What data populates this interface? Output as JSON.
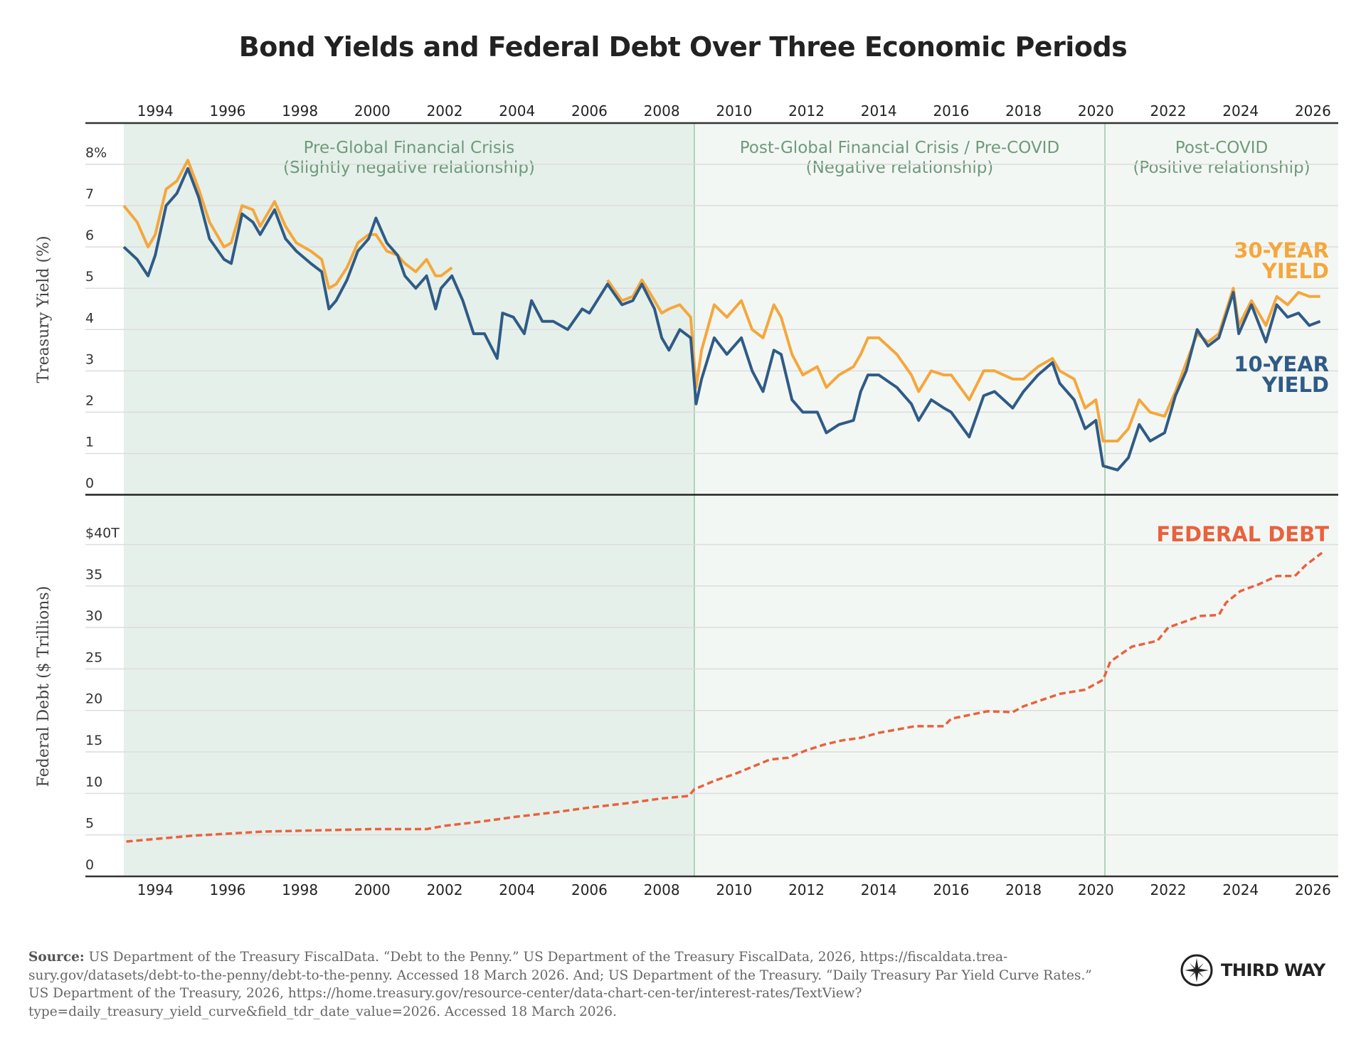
{
  "title": "Bond Yields and Federal Debt Over Three Economic Periods",
  "colors": {
    "yield_30": "#f5a73c",
    "yield_10": "#2f5b86",
    "debt": "#e8623d",
    "period_label": "#6e9a7b",
    "period_1_bg": "#e6f0ea",
    "period_2_bg": "#f3f7f4",
    "period_3_bg": "#f3f7f4",
    "gridline": "#dcdcdc",
    "divider": "#9cc6a6"
  },
  "chart_data": [
    {
      "type": "line",
      "panel": "top",
      "ylabel": "Treasury Yield (%)",
      "ylim": [
        0,
        9
      ],
      "xlim": [
        1993.13,
        2026.7
      ],
      "x_ticks": [
        1994,
        1996,
        1998,
        2000,
        2002,
        2004,
        2006,
        2008,
        2010,
        2012,
        2014,
        2016,
        2018,
        2020,
        2022,
        2024,
        2026
      ],
      "x_tick_labels": [
        "1994",
        "1996",
        "1998",
        "2000",
        "2002",
        "2004",
        "2006",
        "2008",
        "2010",
        "2012",
        "2014",
        "2016",
        "2018",
        "2020",
        "2022",
        "2024",
        "2026"
      ],
      "y_ticks": [
        0,
        1,
        2,
        3,
        4,
        5,
        6,
        7,
        8
      ],
      "y_tick_labels": [
        "0",
        "1",
        "2",
        "3",
        "4",
        "5",
        "6",
        "7",
        "8%"
      ],
      "grid": true,
      "periods": [
        {
          "label_1": "Pre-Global Financial Crisis",
          "label_2": "(Slightly negative relationship)",
          "start": 1993.13,
          "end": 2008.9
        },
        {
          "label_1": "Post-Global Financial Crisis / Pre-COVID",
          "label_2": "(Negative relationship)",
          "start": 2008.9,
          "end": 2020.25
        },
        {
          "label_1": "Post-COVID",
          "label_2": "(Positive relationship)",
          "start": 2020.25,
          "end": 2026.7
        }
      ],
      "x": [
        1993.13,
        1993.5,
        1993.8,
        1994.0,
        1994.3,
        1994.6,
        1994.9,
        1995.2,
        1995.5,
        1995.9,
        1996.1,
        1996.4,
        1996.7,
        1996.9,
        1997.3,
        1997.6,
        1997.9,
        1998.3,
        1998.6,
        1998.8,
        1999.0,
        1999.3,
        1999.6,
        1999.9,
        2000.1,
        2000.4,
        2000.7,
        2000.9,
        2001.2,
        2001.5,
        2001.75,
        2001.9,
        2002.2,
        2002.5,
        2002.8,
        2003.1,
        2003.45,
        2003.6,
        2003.9,
        2004.2,
        2004.4,
        2004.7,
        2005.0,
        2005.4,
        2005.8,
        2006.0,
        2006.5,
        2006.9,
        2007.2,
        2007.45,
        2007.8,
        2008.0,
        2008.2,
        2008.5,
        2008.8,
        2008.95,
        2009.1,
        2009.45,
        2009.8,
        2010.2,
        2010.5,
        2010.8,
        2011.1,
        2011.3,
        2011.6,
        2011.9,
        2012.3,
        2012.55,
        2012.9,
        2013.3,
        2013.5,
        2013.7,
        2014.0,
        2014.5,
        2014.9,
        2015.1,
        2015.45,
        2015.8,
        2016.0,
        2016.5,
        2016.9,
        2017.2,
        2017.7,
        2018.0,
        2018.4,
        2018.8,
        2019.0,
        2019.4,
        2019.7,
        2020.0,
        2020.2,
        2020.6,
        2020.9,
        2021.2,
        2021.5,
        2021.9,
        2022.2,
        2022.5,
        2022.8,
        2023.1,
        2023.4,
        2023.8,
        2023.95,
        2024.3,
        2024.7,
        2025.0,
        2025.3,
        2025.6,
        2025.9,
        2026.2
      ],
      "series": [
        {
          "name": "30-YEAR YIELD",
          "label_1": "30-YEAR",
          "label_2": "YIELD",
          "values": [
            7.0,
            6.6,
            6.0,
            6.3,
            7.4,
            7.6,
            8.1,
            7.4,
            6.6,
            6.0,
            6.1,
            7.0,
            6.9,
            6.5,
            7.1,
            6.5,
            6.1,
            5.9,
            5.7,
            5.0,
            5.1,
            5.5,
            6.1,
            6.3,
            6.3,
            5.9,
            5.8,
            5.6,
            5.4,
            5.7,
            5.3,
            5.3,
            5.5,
            null,
            null,
            null,
            null,
            null,
            null,
            null,
            null,
            null,
            null,
            null,
            null,
            null,
            5.2,
            4.7,
            4.8,
            5.2,
            4.7,
            4.4,
            4.5,
            4.6,
            4.3,
            2.6,
            3.5,
            4.6,
            4.3,
            4.7,
            4.0,
            3.8,
            4.6,
            4.3,
            3.4,
            2.9,
            3.1,
            2.6,
            2.9,
            3.1,
            3.4,
            3.8,
            3.8,
            3.4,
            2.9,
            2.5,
            3.0,
            2.9,
            2.9,
            2.3,
            3.0,
            3.0,
            2.8,
            2.8,
            3.1,
            3.3,
            3.0,
            2.8,
            2.1,
            2.3,
            1.3,
            1.3,
            1.6,
            2.3,
            2.0,
            1.9,
            2.5,
            3.2,
            3.9,
            3.7,
            3.9,
            5.0,
            4.1,
            4.7,
            4.1,
            4.8,
            4.6,
            4.9,
            4.8,
            4.8
          ]
        },
        {
          "name": "10-YEAR YIELD",
          "label_1": "10-YEAR",
          "label_2": "YIELD",
          "values": [
            6.0,
            5.7,
            5.3,
            5.8,
            7.0,
            7.3,
            7.9,
            7.2,
            6.2,
            5.7,
            5.6,
            6.8,
            6.6,
            6.3,
            6.9,
            6.2,
            5.9,
            5.6,
            5.4,
            4.5,
            4.7,
            5.2,
            5.9,
            6.2,
            6.7,
            6.1,
            5.8,
            5.3,
            5.0,
            5.3,
            4.5,
            5.0,
            5.3,
            4.7,
            3.9,
            3.9,
            3.3,
            4.4,
            4.3,
            3.9,
            4.7,
            4.2,
            4.2,
            4.0,
            4.5,
            4.4,
            5.1,
            4.6,
            4.7,
            5.1,
            4.5,
            3.8,
            3.5,
            4.0,
            3.8,
            2.2,
            2.8,
            3.8,
            3.4,
            3.8,
            3.0,
            2.5,
            3.5,
            3.4,
            2.3,
            2.0,
            2.0,
            1.5,
            1.7,
            1.8,
            2.5,
            2.9,
            2.9,
            2.6,
            2.2,
            1.8,
            2.3,
            2.1,
            2.0,
            1.4,
            2.4,
            2.5,
            2.1,
            2.5,
            2.9,
            3.2,
            2.7,
            2.3,
            1.6,
            1.8,
            0.7,
            0.6,
            0.9,
            1.7,
            1.3,
            1.5,
            2.4,
            3.0,
            4.0,
            3.6,
            3.8,
            4.9,
            3.9,
            4.6,
            3.7,
            4.6,
            4.3,
            4.4,
            4.1,
            4.2
          ]
        }
      ]
    },
    {
      "type": "line",
      "panel": "bottom",
      "ylabel": "Federal Debt ($ Trillions)",
      "ylim": [
        0,
        46
      ],
      "xlim": [
        1993.13,
        2026.7
      ],
      "y_ticks": [
        0,
        5,
        10,
        15,
        20,
        25,
        30,
        35,
        40
      ],
      "y_tick_labels": [
        "0",
        "5",
        "10",
        "15",
        "20",
        "25",
        "30",
        "35",
        "$40T"
      ],
      "grid": true,
      "line_style": "dashed",
      "series": [
        {
          "name": "FEDERAL DEBT",
          "x": [
            1993.2,
            1995,
            1997,
            1999,
            2000,
            2001.5,
            2002,
            2003,
            2004,
            2005,
            2006,
            2007,
            2008,
            2008.75,
            2008.9,
            2009.5,
            2010,
            2010.5,
            2011,
            2011.5,
            2012,
            2012.5,
            2013,
            2013.5,
            2014,
            2015,
            2015.8,
            2016,
            2017,
            2017.7,
            2018,
            2019,
            2019.7,
            2020.2,
            2020.4,
            2021,
            2021.7,
            2022,
            2022.9,
            2023.4,
            2023.6,
            2024,
            2024.5,
            2025,
            2025.5,
            2025.8,
            2026.25
          ],
          "values": [
            4.2,
            4.9,
            5.4,
            5.6,
            5.7,
            5.7,
            6.1,
            6.6,
            7.2,
            7.7,
            8.3,
            8.8,
            9.4,
            9.7,
            10.5,
            11.6,
            12.3,
            13.2,
            14.1,
            14.3,
            15.2,
            15.9,
            16.4,
            16.7,
            17.3,
            18.1,
            18.1,
            19.0,
            19.9,
            19.8,
            20.5,
            22.0,
            22.5,
            23.7,
            25.9,
            27.7,
            28.4,
            30.0,
            31.4,
            31.5,
            33.0,
            34.4,
            35.2,
            36.2,
            36.2,
            37.5,
            39.0
          ]
        }
      ]
    }
  ],
  "source": {
    "label": "Source:",
    "text": "US Department of the Treasury FiscalData. “Debt to the Penny.” US Department of the Treasury FiscalData, 2026, https://fiscaldata.trea-sury.gov/datasets/debt-to-the-penny/debt-to-the-penny. Accessed 18 March 2026. And; US Department of the Treasury. “Daily Treasury Par Yield Curve Rates.” US Department of the Treasury, 2026, https://home.treasury.gov/resource-center/data-chart-cen-ter/interest-rates/TextView?type=daily_treasury_yield_curve&field_tdr_date_value=2026. Accessed 18 March 2026."
  },
  "logo": {
    "text": "THIRD WAY",
    "icon": "compass-star-icon"
  }
}
